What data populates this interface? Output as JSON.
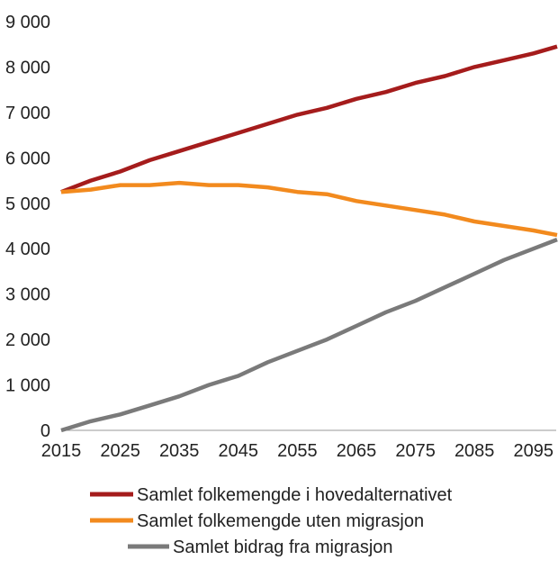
{
  "chart_data": {
    "type": "line",
    "title": "",
    "xlabel": "",
    "ylabel": "",
    "xlim": [
      2015,
      2099
    ],
    "ylim": [
      0,
      9000
    ],
    "grid": false,
    "legend_position": "bottom",
    "x_ticks": [
      "2015",
      "2025",
      "2035",
      "2045",
      "2055",
      "2065",
      "2075",
      "2085",
      "2095"
    ],
    "y_ticks": [
      "0",
      "1 000",
      "2 000",
      "3 000",
      "4 000",
      "5 000",
      "6 000",
      "7 000",
      "8 000",
      "9 000"
    ],
    "x": [
      2015,
      2020,
      2025,
      2030,
      2035,
      2040,
      2045,
      2050,
      2055,
      2060,
      2065,
      2070,
      2075,
      2080,
      2085,
      2090,
      2095,
      2099
    ],
    "series": [
      {
        "name": "Samlet folkemengde i hovedalternativet",
        "color": "#a51c1c",
        "values": [
          5250,
          5500,
          5700,
          5950,
          6150,
          6350,
          6550,
          6750,
          6950,
          7100,
          7300,
          7450,
          7650,
          7800,
          8000,
          8150,
          8300,
          8450
        ]
      },
      {
        "name": "Samlet folkemengde uten migrasjon",
        "color": "#f28a1e",
        "values": [
          5250,
          5300,
          5400,
          5400,
          5450,
          5400,
          5400,
          5350,
          5250,
          5200,
          5050,
          4950,
          4850,
          4750,
          4600,
          4500,
          4400,
          4300
        ]
      },
      {
        "name": "Samlet bidrag fra migrasjon",
        "color": "#7a7a7a",
        "values": [
          0,
          200,
          350,
          550,
          750,
          1000,
          1200,
          1500,
          1750,
          2000,
          2300,
          2600,
          2850,
          3150,
          3450,
          3750,
          4000,
          4200
        ]
      }
    ]
  }
}
